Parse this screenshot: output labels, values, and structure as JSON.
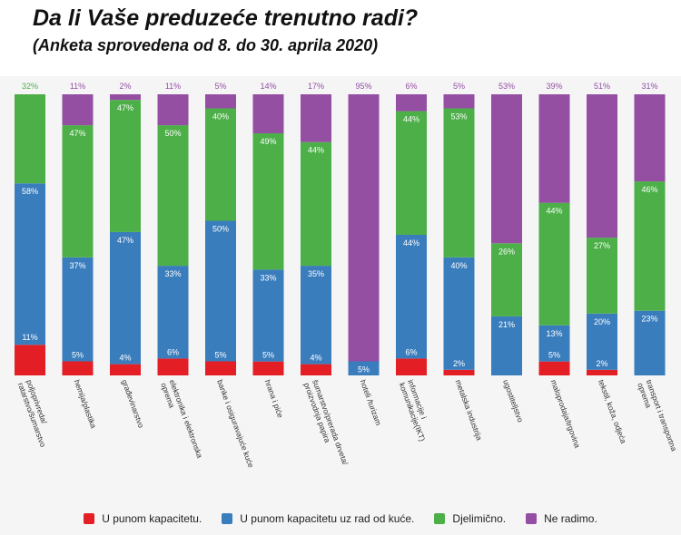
{
  "title": "Da li Vaše preduzeće trenutno radi?",
  "subtitle": "(Anketa sprovedena od 8. do 30. aprila 2020)",
  "colors": {
    "full": "#e31e24",
    "remote": "#3a7dbd",
    "partial": "#4caf48",
    "not": "#944ea2"
  },
  "chart_data": {
    "type": "bar",
    "stacked": true,
    "title": "Da li Vaše preduzeće trenutno radi?",
    "subtitle": "(Anketa sprovedena od 8. do 30. aprila 2020)",
    "ylim": [
      0,
      100
    ],
    "categories": [
      "poljoprivreda/ ratarstvo/šumarstvo",
      "hemija/plastika",
      "građevinarstvo",
      "elektronika i elektronska oprema",
      "banke i osiguravajuće kuće",
      "hrana i piće",
      "šumarstvo/prerada drveta/ proizvodnja papira",
      "hoteli /turizam",
      "informacije i komunikacije(IKT)",
      "metalska industrija",
      "ugostiteljstvo",
      "maloprodaja/trgovina",
      "tekstil, koža, odjeća",
      "transport i transportna oprema"
    ],
    "series": [
      {
        "name": "U punom kapacitetu.",
        "key": "full",
        "values": [
          11,
          5,
          4,
          6,
          5,
          5,
          4,
          0,
          6,
          2,
          0,
          5,
          2,
          0
        ]
      },
      {
        "name": "U punom kapacitetu uz rad od kuće.",
        "key": "remote",
        "values": [
          58,
          37,
          47,
          33,
          50,
          33,
          35,
          5,
          44,
          40,
          21,
          13,
          20,
          23
        ]
      },
      {
        "name": "Djelimično.",
        "key": "partial",
        "values": [
          32,
          47,
          47,
          50,
          40,
          49,
          44,
          0,
          44,
          53,
          26,
          44,
          27,
          46
        ]
      },
      {
        "name": "Ne radimo.",
        "key": "not",
        "values": [
          0,
          11,
          2,
          11,
          5,
          14,
          17,
          95,
          6,
          5,
          53,
          39,
          51,
          31
        ]
      }
    ],
    "labels": [
      {
        "remote": "58%",
        "partial": "32%"
      },
      {
        "full": "5%",
        "remote": "37%",
        "partial": "47%",
        "not": "11%"
      },
      {
        "full": "4%",
        "remote": "47%",
        "partial": "47%",
        "not": "2%"
      },
      {
        "full": "6%",
        "remote": "33%",
        "partial": "50%",
        "not": "11%"
      },
      {
        "full": "5%",
        "remote": "50%",
        "partial": "40%",
        "not": "5%"
      },
      {
        "full": "5%",
        "remote": "33%",
        "partial": "49%",
        "not": "14%"
      },
      {
        "full": "4%",
        "remote": "35%",
        "partial": "44%",
        "not": "17%"
      },
      {
        "remote": "5%",
        "not": "95%"
      },
      {
        "full": "6%",
        "remote": "44%",
        "partial": "44%",
        "not": "6%"
      },
      {
        "full": "2%",
        "remote": "40%",
        "partial": "53%",
        "not": "5%"
      },
      {
        "remote": "21%",
        "partial": "26%",
        "not": "53%"
      },
      {
        "full": "5%",
        "remote": "13%",
        "partial": "44%",
        "not": "39%"
      },
      {
        "full": "2%",
        "remote": "20%",
        "partial": "27%",
        "not": "51%"
      },
      {
        "remote": "23%",
        "partial": "46%",
        "not": "31%"
      }
    ],
    "extra_labels": [
      {
        "category": 0,
        "text": "11%",
        "series": "full"
      }
    ],
    "legend_position": "bottom-center"
  },
  "legend": [
    {
      "label": "U punom kapacitetu.",
      "key": "full"
    },
    {
      "label": "U punom kapacitetu uz rad od kuće.",
      "key": "remote"
    },
    {
      "label": "Djelimično.",
      "key": "partial"
    },
    {
      "label": "Ne radimo.",
      "key": "not"
    }
  ]
}
